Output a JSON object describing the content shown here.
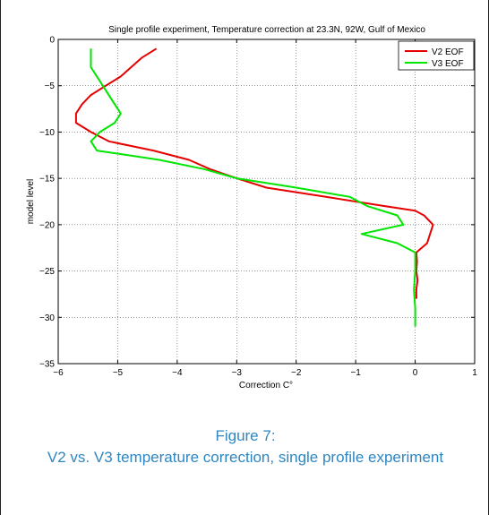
{
  "chart_data": {
    "type": "line",
    "title": "Single profile experiment, Temperature correction at 23.3N, 92W, Gulf of Mexico",
    "xlabel": "Correction C°",
    "ylabel": "model level",
    "xlim": [
      -6,
      1
    ],
    "ylim": [
      -35,
      0
    ],
    "xticks": [
      -6,
      -5,
      -4,
      -3,
      -2,
      -1,
      0,
      1
    ],
    "yticks": [
      -35,
      -30,
      -25,
      -20,
      -15,
      -10,
      -5,
      0
    ],
    "xtick_labels": [
      "−6",
      "−5",
      "−4",
      "−3",
      "−2",
      "−1",
      "0",
      "1"
    ],
    "ytick_labels": [
      "−35",
      "−30",
      "−25",
      "−20",
      "−15",
      "−10",
      "−5",
      "0"
    ],
    "grid": true,
    "legend_position": "top-right",
    "series": [
      {
        "name": "V2 EOF",
        "color": "#e60000",
        "x": [
          -4.35,
          -4.6,
          -4.95,
          -5.2,
          -5.45,
          -5.6,
          -5.7,
          -5.7,
          -5.45,
          -5.15,
          -4.4,
          -3.8,
          -3.45,
          -3.0,
          -2.5,
          -1.5,
          -0.5,
          0.0,
          0.15,
          0.3,
          0.2,
          0.02,
          0.03,
          0.02,
          0.04,
          0.02,
          0.02
        ],
        "y": [
          -1,
          -2,
          -4,
          -5,
          -6,
          -7,
          -8,
          -9,
          -10,
          -11,
          -12,
          -13,
          -14,
          -15,
          -16,
          -17,
          -18,
          -18.5,
          -19,
          -20,
          -22,
          -23,
          -24,
          -25,
          -26,
          -27,
          -28
        ]
      },
      {
        "name": "V3 EOF",
        "color": "#00e600",
        "x": [
          -5.45,
          -5.45,
          -5.35,
          -5.25,
          -5.05,
          -4.95,
          -5.05,
          -5.3,
          -5.45,
          -5.35,
          -4.3,
          -3.55,
          -3.0,
          -2.0,
          -1.1,
          -0.8,
          -0.3,
          -0.2,
          -0.9,
          -0.3,
          0.0,
          0.0,
          -0.02,
          0.0,
          0.0
        ],
        "y": [
          -1,
          -3,
          -4,
          -5,
          -7,
          -8,
          -9,
          -10,
          -11,
          -12,
          -13,
          -14,
          -15,
          -16,
          -17,
          -18,
          -19,
          -20,
          -21,
          -22,
          -23,
          -25,
          -27,
          -29,
          -31
        ]
      }
    ]
  },
  "caption": {
    "number": "Figure 7:",
    "text": "V2 vs. V3 temperature correction, single profile experiment"
  }
}
